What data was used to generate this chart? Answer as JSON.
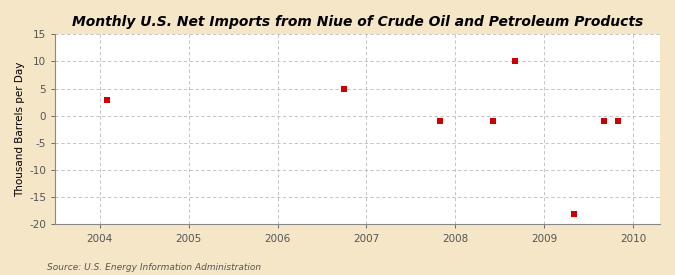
{
  "title": "Monthly U.S. Net Imports from Niue of Crude Oil and Petroleum Products",
  "ylabel": "Thousand Barrels per Day",
  "source": "Source: U.S. Energy Information Administration",
  "figure_bg": "#f5e6c8",
  "plot_bg": "#ffffff",
  "data_points": [
    [
      2004.08,
      3
    ],
    [
      2006.75,
      5
    ],
    [
      2007.83,
      -1
    ],
    [
      2008.42,
      -1
    ],
    [
      2008.67,
      10
    ],
    [
      2009.33,
      -18
    ],
    [
      2009.67,
      -1
    ],
    [
      2009.83,
      -1
    ]
  ],
  "xlim": [
    2003.5,
    2010.3
  ],
  "ylim": [
    -20,
    15
  ],
  "xticks": [
    2004,
    2005,
    2006,
    2007,
    2008,
    2009,
    2010
  ],
  "yticks": [
    -20,
    -15,
    -10,
    -5,
    0,
    5,
    10,
    15
  ],
  "marker_color": "#cc0000",
  "marker_size": 4,
  "grid_color": "#bbbbbb",
  "title_fontsize": 10,
  "label_fontsize": 7.5,
  "tick_fontsize": 7.5,
  "source_fontsize": 6.5
}
